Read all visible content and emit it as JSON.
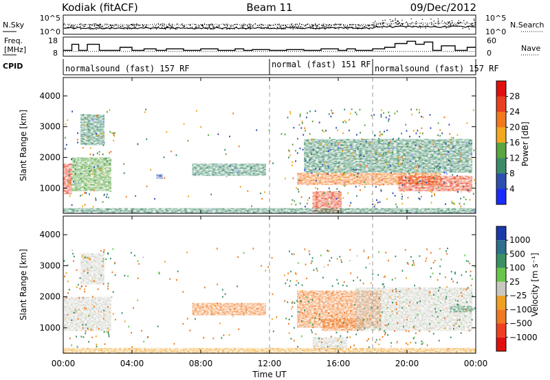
{
  "header": {
    "title": "Kodiak (fitACF)",
    "beam": "Beam 11",
    "date": "09/Dec/2012"
  },
  "top_panels": {
    "noise": {
      "left_label": "N.Sky",
      "right_label": "N.Search",
      "left_ticks": [
        "10^5",
        "10^0"
      ],
      "right_ticks": [
        "10^5",
        "10^0"
      ]
    },
    "freq": {
      "left_label_1": "Freq.",
      "left_label_2": "[MHz]",
      "right_label": "Nave",
      "left_ticks": [
        "18",
        "8"
      ],
      "right_ticks": [
        "60",
        "0"
      ],
      "frequency_step_hours": [
        0,
        0.5,
        0.9,
        1.4,
        2.1,
        3.3,
        4,
        4.7,
        5.4,
        6,
        7,
        8,
        9,
        10,
        10.5,
        11,
        12,
        13,
        14,
        15,
        16,
        16.5,
        17,
        18,
        18.7,
        19.3,
        20,
        20.5,
        21,
        21.5,
        22,
        22.8,
        23.5,
        24
      ],
      "frequency_step_levels": [
        0.3,
        0.7,
        0.3,
        0.7,
        0.3,
        0.5,
        0.3,
        0.4,
        0.3,
        0.4,
        0.3,
        0.4,
        0.3,
        0.4,
        0.3,
        0.35,
        0.3,
        0.35,
        0.3,
        0.4,
        0.3,
        0.4,
        0.3,
        0.4,
        0.5,
        0.75,
        0.9,
        0.7,
        0.85,
        0.3,
        0.6,
        0.3,
        0.5,
        0.5
      ]
    },
    "cpid": {
      "label": "CPID",
      "modes": [
        {
          "text": "normalsound (fast) 157 RF",
          "start_hour": 0
        },
        {
          "text": "normal (fast) 151 RF",
          "start_hour": 12
        },
        {
          "text": "normalsound (fast) 157 RF",
          "start_hour": 18
        }
      ]
    }
  },
  "axis": {
    "ylabel": "Slant Range [km]",
    "yticks": [
      "1000",
      "2000",
      "3000",
      "4000"
    ],
    "xticks": [
      "00:00",
      "04:00",
      "08:00",
      "12:00",
      "16:00",
      "20:00",
      "00:00"
    ],
    "xlabel": "Time UT"
  },
  "power_colorbar": {
    "title": "Power [dB]",
    "labels": [
      "4",
      "8",
      "12",
      "16",
      "20",
      "24",
      "28"
    ],
    "colors": [
      "#1a2bff",
      "#2f4fb0",
      "#3d8a68",
      "#5aa540",
      "#f2a81d",
      "#f2781d",
      "#e84020",
      "#e01010"
    ]
  },
  "velocity_colorbar": {
    "title": "Velocity [m s⁻¹]",
    "labels": [
      "1000",
      "500",
      "100",
      "25",
      "−25",
      "−100",
      "−500",
      "−1000"
    ],
    "colors": [
      "#1a3aaa",
      "#2d6f8c",
      "#3a9060",
      "#6ac64a",
      "#c8c8c0",
      "#f0a020",
      "#f07820",
      "#ee4020",
      "#e01010"
    ]
  },
  "chart_data": [
    {
      "type": "heatmap",
      "title": "Power [dB]",
      "ylabel": "Slant Range [km]",
      "xlabel": "Time UT",
      "x_range_hours": [
        0,
        24
      ],
      "y_range_km": [
        180,
        4600
      ],
      "regions": [
        {
          "t0": 0.0,
          "t1": 0.5,
          "r0": 800,
          "r1": 1800,
          "value_db": 26
        },
        {
          "t0": 0.5,
          "t1": 2.8,
          "r0": 900,
          "r1": 2000,
          "value_db": 14
        },
        {
          "t0": 1.0,
          "t1": 2.4,
          "r0": 2400,
          "r1": 3400,
          "value_db": 8
        },
        {
          "t0": 5.4,
          "t1": 5.8,
          "r0": 1300,
          "r1": 1450,
          "value_db": 6
        },
        {
          "t0": 7.5,
          "t1": 11.8,
          "r0": 1400,
          "r1": 1800,
          "value_db": 9
        },
        {
          "t0": 13.6,
          "t1": 22.0,
          "r0": 1100,
          "r1": 1500,
          "value_db": 22
        },
        {
          "t0": 14.5,
          "t1": 16.2,
          "r0": 200,
          "r1": 900,
          "value_db": 25
        },
        {
          "t0": 14.0,
          "t1": 23.8,
          "r0": 1500,
          "r1": 2600,
          "value_db": 10
        },
        {
          "t0": 19.5,
          "t1": 23.8,
          "r0": 900,
          "r1": 1400,
          "value_db": 26
        },
        {
          "t0": 0.0,
          "t1": 24.0,
          "r0": 190,
          "r1": 350,
          "value_db": 8
        }
      ]
    },
    {
      "type": "heatmap",
      "title": "Velocity [m s⁻¹]",
      "ylabel": "Slant Range [km]",
      "xlabel": "Time UT",
      "x_range_hours": [
        0,
        24
      ],
      "y_range_km": [
        180,
        4600
      ],
      "regions": [
        {
          "t0": 0.0,
          "t1": 2.8,
          "r0": 900,
          "r1": 2000,
          "value_ms": 0
        },
        {
          "t0": 1.0,
          "t1": 2.4,
          "r0": 2400,
          "r1": 3400,
          "value_ms": 0
        },
        {
          "t0": 7.5,
          "t1": 11.8,
          "r0": 1400,
          "r1": 1800,
          "value_ms": -300
        },
        {
          "t0": 13.6,
          "t1": 18.5,
          "r0": 1000,
          "r1": 2200,
          "value_ms": -400
        },
        {
          "t0": 15.0,
          "t1": 17.5,
          "r0": 900,
          "r1": 1300,
          "value_ms": -200
        },
        {
          "t0": 17.0,
          "t1": 23.8,
          "r0": 900,
          "r1": 2300,
          "value_ms": 0
        },
        {
          "t0": 22.5,
          "t1": 23.8,
          "r0": 1500,
          "r1": 1700,
          "value_ms": 100
        },
        {
          "t0": 14.5,
          "t1": 16.5,
          "r0": 300,
          "r1": 700,
          "value_ms": 0
        },
        {
          "t0": 0.0,
          "t1": 24.0,
          "r0": 190,
          "r1": 350,
          "value_ms": -100
        }
      ]
    }
  ]
}
